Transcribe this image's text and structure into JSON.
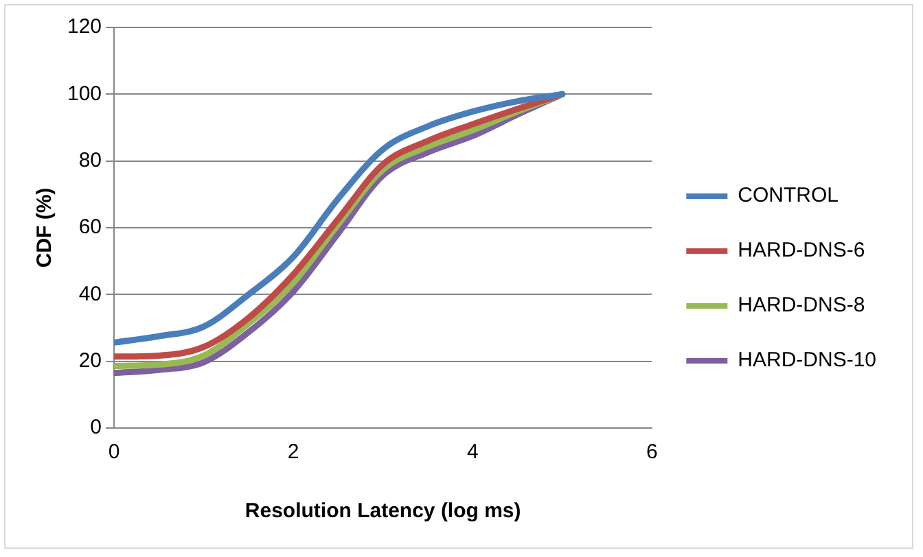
{
  "chart_data": {
    "type": "line",
    "xlabel": "Resolution Latency (log ms)",
    "ylabel": "CDF (%)",
    "xlim": [
      0,
      6
    ],
    "xticks": [
      0,
      2,
      4,
      6
    ],
    "ylim": [
      0,
      120
    ],
    "yticks": [
      0,
      20,
      40,
      60,
      80,
      100,
      120
    ],
    "grid": "y",
    "legend": "right",
    "marker": "none",
    "line_style": "solid",
    "x": [
      0,
      0.5,
      1,
      1.5,
      2,
      2.5,
      3,
      3.5,
      4,
      4.5,
      5
    ],
    "series": [
      {
        "name": "CONTROL",
        "color": "#4a7ebb",
        "values": [
          25.6,
          27.5,
          30.4,
          40,
          51.3,
          68.7,
          83.5,
          90.4,
          94.8,
          97.9,
          100
        ]
      },
      {
        "name": "HARD-DNS-6",
        "color": "#be4b48",
        "values": [
          21.4,
          21.7,
          24.3,
          33,
          46,
          62.6,
          79,
          86,
          91,
          95.6,
          100
        ]
      },
      {
        "name": "HARD-DNS-8",
        "color": "#98b954",
        "values": [
          18.6,
          19,
          21.7,
          31.3,
          43.5,
          61,
          77.4,
          84.3,
          89.2,
          94.8,
          100
        ]
      },
      {
        "name": "HARD-DNS-10",
        "color": "#7d60a0",
        "values": [
          16.5,
          17.4,
          19.7,
          28.7,
          40.9,
          58.3,
          75.7,
          82.6,
          87.5,
          93.9,
          100
        ]
      }
    ]
  }
}
